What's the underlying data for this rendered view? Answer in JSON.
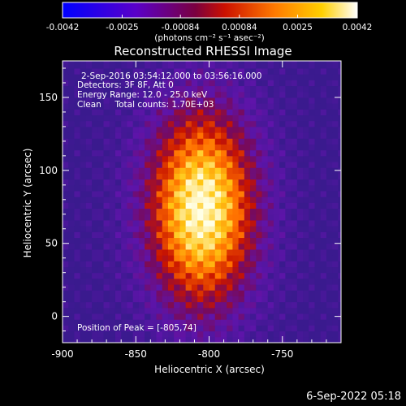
{
  "chart_data": {
    "type": "heatmap",
    "title": "Reconstructed RHESSI Image",
    "xlabel": "Heliocentric X (arcsec)",
    "ylabel": "Heliocentric Y (arcsec)",
    "xlim": [
      -900,
      -710
    ],
    "ylim": [
      -18,
      175
    ],
    "x_ticks": [
      -900,
      -850,
      -800,
      -750
    ],
    "x_tick_labels": [
      "-900",
      "-850",
      "-800",
      "-750"
    ],
    "y_ticks": [
      0,
      50,
      100,
      150
    ],
    "y_tick_labels": [
      "0",
      "50",
      "100",
      "150"
    ],
    "colorbar": {
      "range": [
        -0.0042,
        0.0042
      ],
      "ticks": [
        -0.0042,
        -0.0025,
        -0.00084,
        0.00084,
        0.0025,
        0.0042
      ],
      "tick_labels": [
        "-0.0042",
        "-0.0025",
        "-0.00084",
        "0.00084",
        "0.0025",
        "0.0042"
      ],
      "unit_label": "(photons cm⁻² s⁻¹ asec⁻²)",
      "colors": [
        "#0000ff",
        "#5a00c8",
        "#7a0040",
        "#cc1000",
        "#ff7a00",
        "#ffd000",
        "#ffffff"
      ]
    },
    "annotations": {
      "time_range": "2-Sep-2016 03:54:12.000 to 03:56:16.000",
      "detectors": "Detectors: 3F 8F, Att 0",
      "energy_range": "Energy Range: 12.0 - 25.0 keV",
      "clean_counts": "Clean     Total counts: 1.70E+03",
      "peak_position": "Position of Peak = [-805,74]"
    },
    "peak": {
      "x": -805,
      "y": 74
    },
    "grid": false
  },
  "footer": {
    "timestamp": "6-Sep-2022 05:18"
  }
}
